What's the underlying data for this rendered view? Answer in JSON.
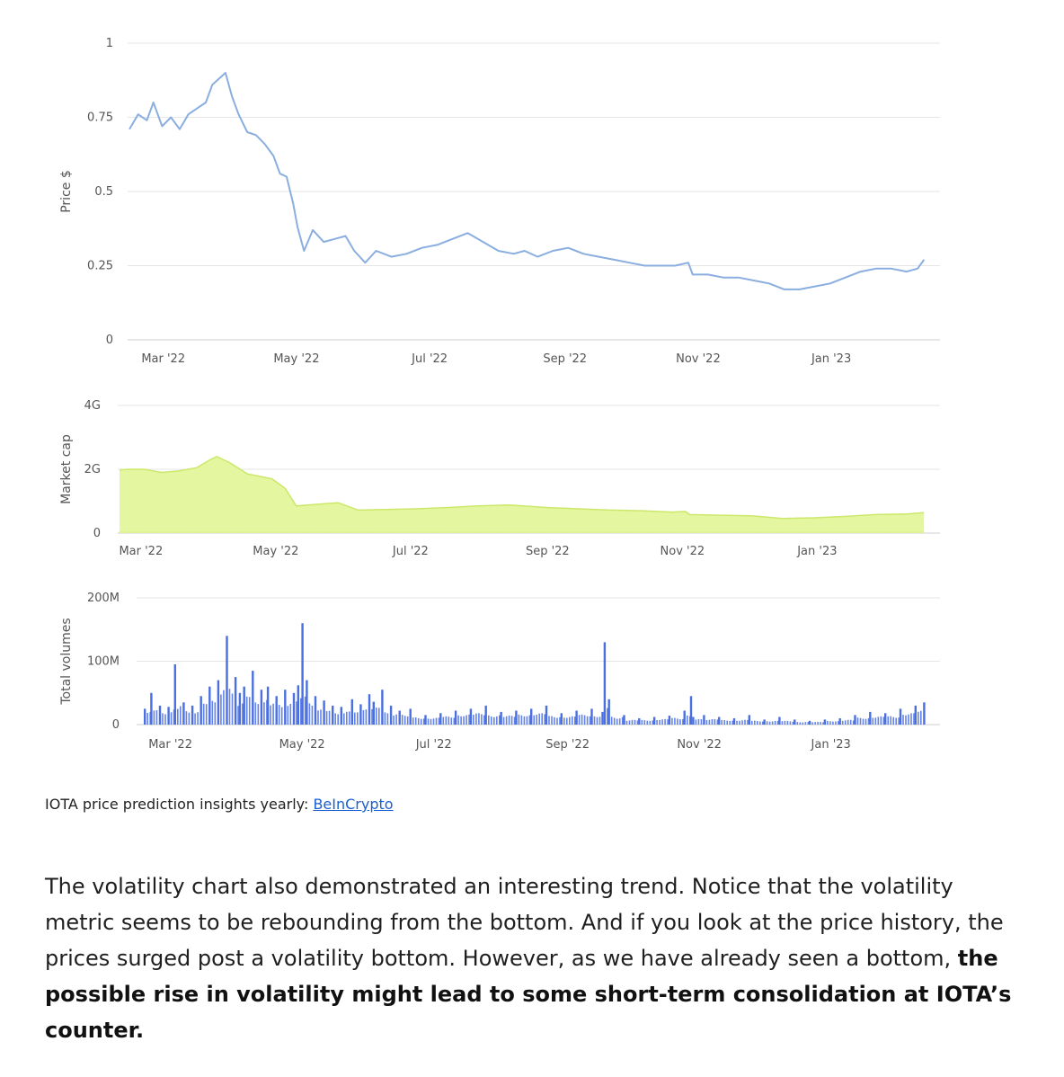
{
  "caption": {
    "text": "IOTA price prediction insights yearly:",
    "link_text": "BeInCrypto"
  },
  "paragraph": {
    "normal": "The volatility chart also demonstrated an interesting trend. Notice that the volatility metric seems to be rebounding from the bottom. And if you look at the price history, the prices surged post a volatility bottom. However, as we have already seen a bottom,",
    "bold": "the possible rise in volatility might lead to some short-term consolidation at IOTA’s counter."
  },
  "colors": {
    "price_line": "#8aaee0",
    "market_cap_fill": "#e4f7a0",
    "market_cap_stroke": "#cbe86a",
    "volume_bar": "#4a6fe0",
    "grid": "#e6e6e6",
    "link": "#1a5fd0"
  },
  "chart_data": [
    {
      "type": "line",
      "ylabel": "Price $",
      "ylim": [
        0,
        1
      ],
      "yticks": [
        0,
        0.25,
        0.5,
        0.75,
        1
      ],
      "ytick_labels": [
        "0",
        "0.25",
        "0.5",
        "0.75",
        "1"
      ],
      "x_tick_labels": [
        "Mar '22",
        "May '22",
        "Jul '22",
        "Sep '22",
        "Nov '22",
        "Jan '23"
      ],
      "x_tick_dates": [
        "2022-03-01",
        "2022-05-01",
        "2022-07-01",
        "2022-09-01",
        "2022-11-01",
        "2023-01-01"
      ],
      "xlim": [
        "2022-02-25",
        "2023-02-28"
      ],
      "grid": true,
      "series": [
        {
          "x": [
            "2022-02-25",
            "2022-03-01",
            "2022-03-05",
            "2022-03-08",
            "2022-03-12",
            "2022-03-16",
            "2022-03-20",
            "2022-03-24",
            "2022-03-28",
            "2022-04-01",
            "2022-04-04",
            "2022-04-07",
            "2022-04-10",
            "2022-04-13",
            "2022-04-16",
            "2022-04-20",
            "2022-04-24",
            "2022-04-28",
            "2022-05-02",
            "2022-05-05",
            "2022-05-08",
            "2022-05-11",
            "2022-05-13",
            "2022-05-16",
            "2022-05-20",
            "2022-05-25",
            "2022-05-30",
            "2022-06-04",
            "2022-06-08",
            "2022-06-13",
            "2022-06-18",
            "2022-06-25",
            "2022-07-02",
            "2022-07-09",
            "2022-07-16",
            "2022-07-23",
            "2022-07-30",
            "2022-08-06",
            "2022-08-13",
            "2022-08-20",
            "2022-08-25",
            "2022-08-31",
            "2022-09-07",
            "2022-09-14",
            "2022-09-21",
            "2022-09-28",
            "2022-10-05",
            "2022-10-12",
            "2022-10-19",
            "2022-10-26",
            "2022-11-02",
            "2022-11-08",
            "2022-11-10",
            "2022-11-17",
            "2022-11-24",
            "2022-12-01",
            "2022-12-08",
            "2022-12-15",
            "2022-12-22",
            "2022-12-29",
            "2023-01-05",
            "2023-01-12",
            "2023-01-19",
            "2023-01-26",
            "2023-02-02",
            "2023-02-09",
            "2023-02-16",
            "2023-02-21",
            "2023-02-24"
          ],
          "values": [
            0.71,
            0.76,
            0.74,
            0.8,
            0.72,
            0.75,
            0.71,
            0.76,
            0.78,
            0.8,
            0.86,
            0.88,
            0.9,
            0.82,
            0.76,
            0.7,
            0.69,
            0.66,
            0.62,
            0.56,
            0.55,
            0.46,
            0.38,
            0.3,
            0.37,
            0.33,
            0.34,
            0.35,
            0.3,
            0.26,
            0.3,
            0.28,
            0.29,
            0.31,
            0.32,
            0.34,
            0.36,
            0.33,
            0.3,
            0.29,
            0.3,
            0.28,
            0.3,
            0.31,
            0.29,
            0.28,
            0.27,
            0.26,
            0.25,
            0.25,
            0.25,
            0.26,
            0.22,
            0.22,
            0.21,
            0.21,
            0.2,
            0.19,
            0.17,
            0.17,
            0.18,
            0.19,
            0.21,
            0.23,
            0.24,
            0.24,
            0.23,
            0.24,
            0.27
          ]
        }
      ]
    },
    {
      "type": "area",
      "ylabel": "Market cap",
      "yticks": [
        0,
        2,
        4
      ],
      "ytick_labels": [
        "0",
        "2G",
        "4G"
      ],
      "ylim": [
        0,
        4
      ],
      "x_tick_labels": [
        "Mar '22",
        "May '22",
        "Jul '22",
        "Sep '22",
        "Nov '22",
        "Jan '23"
      ],
      "x_tick_dates": [
        "2022-03-01",
        "2022-05-01",
        "2022-07-01",
        "2022-09-01",
        "2022-11-01",
        "2023-01-01"
      ],
      "xlim": [
        "2022-02-25",
        "2023-02-28"
      ],
      "grid": true,
      "series": [
        {
          "x": [
            "2022-02-25",
            "2022-03-01",
            "2022-03-08",
            "2022-03-16",
            "2022-03-24",
            "2022-04-01",
            "2022-04-07",
            "2022-04-10",
            "2022-04-16",
            "2022-04-24",
            "2022-04-28",
            "2022-05-05",
            "2022-05-11",
            "2022-05-16",
            "2022-05-25",
            "2022-06-04",
            "2022-06-13",
            "2022-06-25",
            "2022-07-09",
            "2022-07-23",
            "2022-08-06",
            "2022-08-20",
            "2022-08-25",
            "2022-09-07",
            "2022-09-21",
            "2022-10-05",
            "2022-10-19",
            "2022-11-02",
            "2022-11-08",
            "2022-11-10",
            "2022-11-24",
            "2022-12-08",
            "2022-12-22",
            "2023-01-05",
            "2023-01-19",
            "2023-02-02",
            "2023-02-16",
            "2023-02-24"
          ],
          "values": [
            1.98,
            2.0,
            2.0,
            1.9,
            1.95,
            2.05,
            2.3,
            2.4,
            2.2,
            1.85,
            1.8,
            1.7,
            1.4,
            0.85,
            0.9,
            0.95,
            0.72,
            0.74,
            0.76,
            0.8,
            0.85,
            0.88,
            0.86,
            0.8,
            0.76,
            0.72,
            0.7,
            0.66,
            0.68,
            0.58,
            0.56,
            0.54,
            0.46,
            0.48,
            0.52,
            0.58,
            0.6,
            0.64
          ]
        }
      ]
    },
    {
      "type": "bar",
      "ylabel": "Total volumes",
      "yticks": [
        0,
        100,
        200
      ],
      "ytick_labels": [
        "0",
        "100M",
        "200M"
      ],
      "ylim": [
        0,
        200
      ],
      "x_tick_labels": [
        "Mar '22",
        "May '22",
        "Jul '22",
        "Sep '22",
        "Nov '22",
        "Jan '23"
      ],
      "x_tick_dates": [
        "2022-03-01",
        "2022-05-01",
        "2022-07-01",
        "2022-09-01",
        "2022-11-01",
        "2023-01-01"
      ],
      "xlim": [
        "2022-02-25",
        "2023-02-28"
      ],
      "grid": true,
      "series": [
        {
          "x": [
            "2022-02-28",
            "2022-03-03",
            "2022-03-07",
            "2022-03-11",
            "2022-03-14",
            "2022-03-18",
            "2022-03-22",
            "2022-03-26",
            "2022-03-30",
            "2022-04-03",
            "2022-04-07",
            "2022-04-11",
            "2022-04-13",
            "2022-04-15",
            "2022-04-19",
            "2022-04-23",
            "2022-04-26",
            "2022-04-30",
            "2022-05-04",
            "2022-05-08",
            "2022-05-10",
            "2022-05-12",
            "2022-05-14",
            "2022-05-18",
            "2022-05-22",
            "2022-05-26",
            "2022-05-30",
            "2022-06-04",
            "2022-06-08",
            "2022-06-12",
            "2022-06-14",
            "2022-06-18",
            "2022-06-22",
            "2022-06-26",
            "2022-07-01",
            "2022-07-08",
            "2022-07-15",
            "2022-07-22",
            "2022-07-29",
            "2022-08-05",
            "2022-08-12",
            "2022-08-19",
            "2022-08-26",
            "2022-09-02",
            "2022-09-09",
            "2022-09-16",
            "2022-09-23",
            "2022-09-28",
            "2022-09-29",
            "2022-10-01",
            "2022-10-08",
            "2022-10-15",
            "2022-10-22",
            "2022-10-29",
            "2022-11-05",
            "2022-11-08",
            "2022-11-09",
            "2022-11-14",
            "2022-11-21",
            "2022-11-28",
            "2022-12-05",
            "2022-12-12",
            "2022-12-19",
            "2022-12-26",
            "2023-01-02",
            "2023-01-09",
            "2023-01-16",
            "2023-01-23",
            "2023-01-30",
            "2023-02-06",
            "2023-02-13",
            "2023-02-20",
            "2023-02-24"
          ],
          "values": [
            25,
            50,
            30,
            28,
            95,
            35,
            30,
            45,
            60,
            70,
            140,
            75,
            50,
            60,
            85,
            55,
            60,
            45,
            55,
            50,
            62,
            160,
            70,
            45,
            38,
            30,
            28,
            40,
            32,
            48,
            36,
            55,
            30,
            22,
            25,
            15,
            18,
            22,
            25,
            30,
            20,
            22,
            25,
            30,
            18,
            22,
            25,
            20,
            130,
            40,
            15,
            10,
            12,
            14,
            22,
            45,
            12,
            15,
            12,
            10,
            15,
            8,
            12,
            8,
            6,
            8,
            10,
            15,
            20,
            18,
            25,
            30,
            35
          ]
        }
      ]
    }
  ]
}
